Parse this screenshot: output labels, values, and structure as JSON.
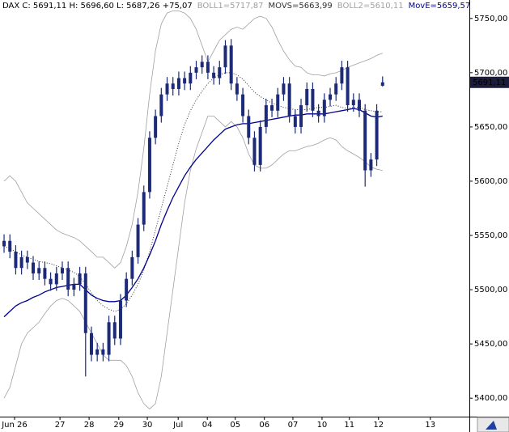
{
  "chart_data": {
    "type": "candlestick",
    "title": "DAX C: 5691,11 H: 5696,60 L: 5687,26 +75,07",
    "last_price_label": "5691,11",
    "candle_color": "#1c2a78",
    "xlim": [
      -0.7,
      79.9
    ],
    "xticks": [
      {
        "value": 1.8,
        "label": "Jun 26"
      },
      {
        "value": 9.6,
        "label": "27"
      },
      {
        "value": 14.6,
        "label": "28"
      },
      {
        "value": 19.7,
        "label": "29"
      },
      {
        "value": 24.6,
        "label": "30"
      },
      {
        "value": 29.9,
        "label": "Jul"
      },
      {
        "value": 34.9,
        "label": "04"
      },
      {
        "value": 39.7,
        "label": "05"
      },
      {
        "value": 44.7,
        "label": "06"
      },
      {
        "value": 49.6,
        "label": "07"
      },
      {
        "value": 54.6,
        "label": "10"
      },
      {
        "value": 59.3,
        "label": "11"
      },
      {
        "value": 64.3,
        "label": "12"
      },
      {
        "value": 73.2,
        "label": "13"
      }
    ],
    "ylim": [
      5383,
      5767
    ],
    "yticks": [
      {
        "value": 5400,
        "label": "5400,00"
      },
      {
        "value": 5450,
        "label": "5450,00"
      },
      {
        "value": 5500,
        "label": "5500,00"
      },
      {
        "value": 5550,
        "label": "5550,00"
      },
      {
        "value": 5600,
        "label": "5600,00"
      },
      {
        "value": 5650,
        "label": "5650,00"
      },
      {
        "value": 5700,
        "label": "5700,00"
      },
      {
        "value": 5750,
        "label": "5750,00"
      }
    ],
    "open": [
      5540,
      5545,
      5535,
      5520,
      5530,
      5525,
      5515,
      5520,
      5510,
      5505,
      5515,
      5520,
      5500,
      5505,
      5515,
      5460,
      5440,
      5445,
      5440,
      5470,
      5455,
      5490,
      5510,
      5530,
      5560,
      5590,
      5640,
      5660,
      5680,
      5690,
      5685,
      5695,
      5690,
      5700,
      5705,
      5710,
      5700,
      5695,
      5705,
      5725,
      5690,
      5680,
      5660,
      5640,
      5615,
      5650,
      5670,
      5665,
      5680,
      5690,
      5660,
      5650,
      5670,
      5685,
      5665,
      5660,
      5675,
      5680,
      5690,
      5705,
      5670,
      5675,
      5665,
      5610,
      5620,
      5688
    ],
    "high": [
      5551,
      5551,
      5541,
      5536,
      5536,
      5531,
      5526,
      5526,
      5516,
      5521,
      5526,
      5526,
      5511,
      5521,
      5521,
      5466,
      5451,
      5451,
      5476,
      5476,
      5496,
      5516,
      5536,
      5566,
      5596,
      5646,
      5666,
      5686,
      5696,
      5696,
      5701,
      5701,
      5706,
      5711,
      5716,
      5716,
      5706,
      5711,
      5730,
      5731,
      5696,
      5686,
      5666,
      5646,
      5656,
      5676,
      5676,
      5686,
      5696,
      5696,
      5666,
      5676,
      5691,
      5691,
      5671,
      5681,
      5686,
      5696,
      5711,
      5711,
      5681,
      5681,
      5671,
      5626,
      5671,
      5696.6
    ],
    "low": [
      5534,
      5529,
      5514,
      5514,
      5519,
      5509,
      5509,
      5504,
      5499,
      5499,
      5509,
      5494,
      5494,
      5499,
      5420,
      5434,
      5434,
      5434,
      5434,
      5449,
      5449,
      5484,
      5504,
      5524,
      5554,
      5584,
      5634,
      5654,
      5674,
      5679,
      5679,
      5684,
      5684,
      5694,
      5699,
      5694,
      5689,
      5689,
      5699,
      5684,
      5674,
      5654,
      5634,
      5609,
      5609,
      5644,
      5659,
      5659,
      5674,
      5654,
      5644,
      5644,
      5664,
      5659,
      5654,
      5654,
      5669,
      5674,
      5684,
      5664,
      5664,
      5659,
      5595,
      5604,
      5614,
      5687.26
    ],
    "close": [
      5545,
      5535,
      5520,
      5530,
      5525,
      5515,
      5520,
      5510,
      5505,
      5515,
      5520,
      5500,
      5505,
      5515,
      5460,
      5440,
      5445,
      5440,
      5470,
      5455,
      5490,
      5510,
      5530,
      5560,
      5590,
      5640,
      5660,
      5680,
      5690,
      5685,
      5695,
      5690,
      5700,
      5705,
      5710,
      5700,
      5695,
      5705,
      5725,
      5690,
      5680,
      5660,
      5640,
      5615,
      5650,
      5670,
      5665,
      5680,
      5690,
      5660,
      5650,
      5670,
      5685,
      5665,
      5660,
      5675,
      5680,
      5690,
      5705,
      5670,
      5675,
      5665,
      5610,
      5620,
      5665,
      5691.11
    ],
    "series": [
      {
        "label": "BOLL1=5717,87",
        "color": "#a0a0a0",
        "line_style": "solid",
        "values": [
          5600,
          5605,
          5600,
          5590,
          5580,
          5575,
          5570,
          5565,
          5560,
          5555,
          5552,
          5550,
          5548,
          5545,
          5540,
          5535,
          5530,
          5530,
          5525,
          5520,
          5525,
          5540,
          5560,
          5590,
          5630,
          5680,
          5720,
          5745,
          5755,
          5757,
          5757,
          5755,
          5750,
          5740,
          5725,
          5710,
          5720,
          5730,
          5735,
          5740,
          5742,
          5740,
          5745,
          5750,
          5752,
          5750,
          5742,
          5730,
          5720,
          5712,
          5706,
          5705,
          5700,
          5698,
          5698,
          5697,
          5699,
          5700,
          5702,
          5705,
          5707,
          5709,
          5711,
          5713,
          5716,
          5718
        ]
      },
      {
        "label": "MOVS=5663,99",
        "color": "#333333",
        "line_style": "dotted",
        "values": [
          5540,
          5538,
          5535,
          5532,
          5530,
          5528,
          5526,
          5525,
          5524,
          5522,
          5520,
          5518,
          5516,
          5512,
          5505,
          5497,
          5490,
          5485,
          5482,
          5480,
          5482,
          5487,
          5495,
          5505,
          5518,
          5535,
          5555,
          5575,
          5595,
          5615,
          5635,
          5652,
          5665,
          5675,
          5683,
          5690,
          5695,
          5698,
          5700,
          5700,
          5698,
          5694,
          5688,
          5682,
          5678,
          5675,
          5672,
          5670,
          5668,
          5667,
          5666,
          5666,
          5666,
          5667,
          5668,
          5668,
          5669,
          5670,
          5668,
          5667,
          5668,
          5668,
          5666,
          5665,
          5664,
          5664
        ]
      },
      {
        "label": "BOLL2=5610,11",
        "color": "#a0a0a0",
        "line_style": "solid",
        "values": [
          5400,
          5410,
          5430,
          5450,
          5460,
          5465,
          5470,
          5478,
          5485,
          5490,
          5492,
          5490,
          5485,
          5480,
          5470,
          5460,
          5450,
          5440,
          5435,
          5435,
          5435,
          5430,
          5420,
          5405,
          5395,
          5390,
          5395,
          5420,
          5460,
          5500,
          5540,
          5580,
          5610,
          5630,
          5645,
          5660,
          5660,
          5655,
          5650,
          5655,
          5650,
          5640,
          5625,
          5615,
          5612,
          5612,
          5615,
          5620,
          5625,
          5628,
          5628,
          5630,
          5632,
          5633,
          5635,
          5638,
          5640,
          5638,
          5632,
          5628,
          5625,
          5622,
          5618,
          5613,
          5611,
          5610
        ]
      },
      {
        "label": "MovE=5659,57",
        "color": "#000090",
        "line_style": "solid",
        "values": [
          5475,
          5480,
          5485,
          5488,
          5490,
          5493,
          5495,
          5498,
          5500,
          5502,
          5503,
          5504,
          5505,
          5505,
          5500,
          5495,
          5492,
          5490,
          5489,
          5489,
          5490,
          5495,
          5502,
          5510,
          5520,
          5532,
          5545,
          5560,
          5573,
          5585,
          5595,
          5605,
          5613,
          5620,
          5626,
          5632,
          5638,
          5643,
          5648,
          5650,
          5652,
          5653,
          5653,
          5654,
          5655,
          5656,
          5657,
          5658,
          5659,
          5660,
          5661,
          5661,
          5662,
          5662,
          5662,
          5662,
          5663,
          5664,
          5665,
          5666,
          5667,
          5666,
          5663,
          5660,
          5659,
          5660
        ]
      }
    ]
  }
}
